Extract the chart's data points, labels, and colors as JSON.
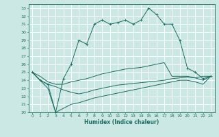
{
  "title": "",
  "xlabel": "Humidex (Indice chaleur)",
  "bg_color": "#cce8e4",
  "grid_color": "#ffffff",
  "line_color": "#1a6b5e",
  "xlim": [
    -0.5,
    23.5
  ],
  "ylim": [
    20,
    33.5
  ],
  "xticks": [
    0,
    1,
    2,
    3,
    4,
    5,
    6,
    7,
    8,
    9,
    10,
    11,
    12,
    13,
    14,
    15,
    16,
    17,
    18,
    19,
    20,
    21,
    22,
    23
  ],
  "yticks": [
    20,
    21,
    22,
    23,
    24,
    25,
    26,
    27,
    28,
    29,
    30,
    31,
    32,
    33
  ],
  "series": {
    "main": [
      25.0,
      24.0,
      23.5,
      20.0,
      24.2,
      26.0,
      29.0,
      28.5,
      31.0,
      31.5,
      31.0,
      31.2,
      31.5,
      31.0,
      31.5,
      33.0,
      32.2,
      31.0,
      31.0,
      29.0,
      25.5,
      25.0,
      24.2,
      24.5
    ],
    "upper": [
      25.0,
      24.5,
      23.8,
      23.5,
      23.5,
      23.8,
      24.0,
      24.2,
      24.5,
      24.8,
      25.0,
      25.2,
      25.4,
      25.5,
      25.6,
      25.8,
      26.0,
      26.2,
      24.5,
      24.5,
      24.5,
      24.3,
      24.5,
      24.5
    ],
    "lower": [
      25.0,
      24.0,
      23.5,
      23.2,
      22.8,
      22.5,
      22.3,
      22.5,
      22.8,
      23.0,
      23.2,
      23.4,
      23.5,
      23.6,
      23.7,
      23.8,
      23.9,
      24.0,
      24.2,
      24.3,
      24.4,
      24.3,
      24.0,
      24.5
    ],
    "bottom": [
      25.0,
      24.0,
      23.0,
      20.0,
      20.5,
      21.0,
      21.2,
      21.5,
      21.8,
      22.0,
      22.2,
      22.4,
      22.6,
      22.8,
      23.0,
      23.2,
      23.4,
      23.6,
      23.8,
      24.0,
      24.0,
      23.8,
      23.5,
      24.5
    ]
  }
}
